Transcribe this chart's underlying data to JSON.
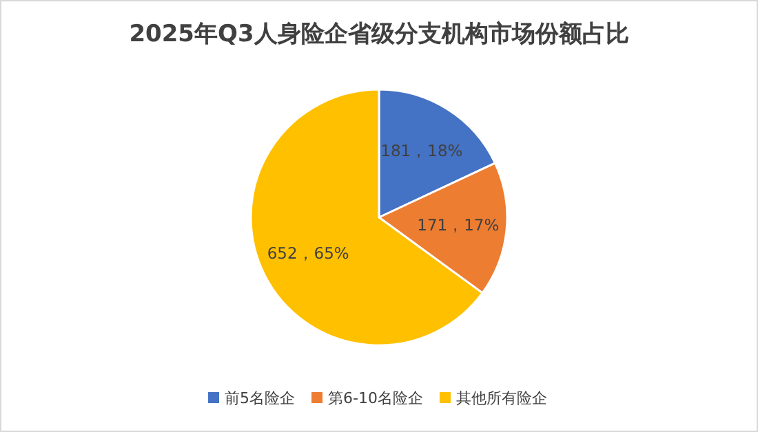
{
  "chart_data": {
    "type": "pie",
    "title": "2025年Q3人身险企省级分支机构市场份额占比",
    "categories": [
      "前5名险企",
      "第6-10名险企",
      "其他所有险企"
    ],
    "values": [
      181,
      171,
      652
    ],
    "value_labels": [
      "181，18%",
      "171，17%",
      "652，65%"
    ],
    "colors": [
      "#4472c4",
      "#ed7d31",
      "#ffc000"
    ],
    "legend": "bottom"
  }
}
